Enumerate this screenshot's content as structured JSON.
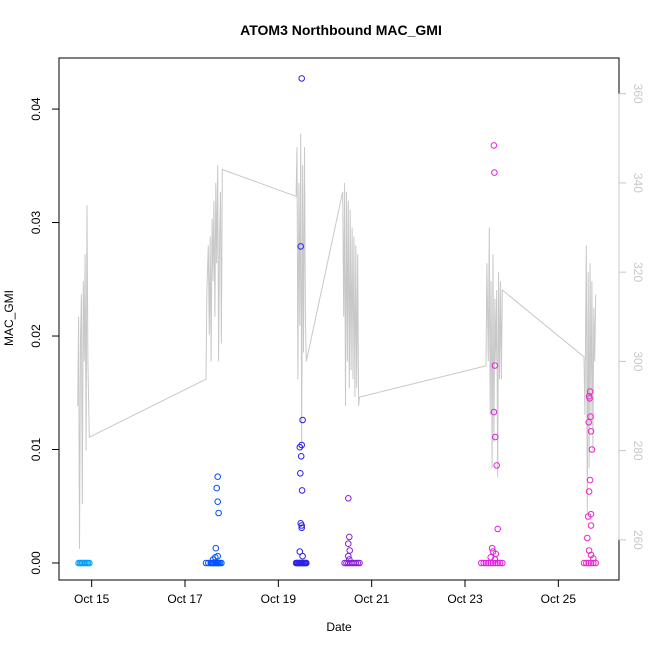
{
  "chart_data": {
    "type": "scatter",
    "title": "ATOM3 Northbound MAC_GMI",
    "xlabel": "Date",
    "ylabel": "MAC_GMI",
    "y2label": "",
    "x_ticks": [
      "Oct 15",
      "Oct 17",
      "Oct 19",
      "Oct 21",
      "Oct 23",
      "Oct 25"
    ],
    "x_tick_values": [
      15,
      17,
      19,
      21,
      23,
      25
    ],
    "xlim": [
      14.3,
      26.3
    ],
    "y_ticks": [
      "0.00",
      "0.01",
      "0.02",
      "0.03",
      "0.04"
    ],
    "y_tick_values": [
      0,
      0.01,
      0.02,
      0.03,
      0.04
    ],
    "ylim": [
      -0.0015,
      0.0445
    ],
    "y2_ticks": [
      "260",
      "280",
      "300",
      "320",
      "340",
      "360"
    ],
    "y2_tick_values": [
      260,
      280,
      300,
      320,
      340,
      360
    ],
    "y2lim": [
      251,
      368
    ],
    "grid": false,
    "legend": "none",
    "colors": {
      "line": "#c8c8c8",
      "right_axis": "#c8c8c8",
      "points_low": "#00a0ff",
      "points_mid": "#0040ff",
      "points_blue": "#2020e0",
      "points_violet": "#8020d0",
      "points_magenta": "#e020e0"
    },
    "series": [
      {
        "type": "scatter",
        "color": "#00a0ff",
        "x": [
          14.72,
          14.75,
          14.78,
          14.8,
          14.83,
          14.86,
          14.89,
          14.92,
          14.95
        ],
        "y": [
          0,
          0,
          0,
          0,
          0,
          0,
          0,
          0,
          0
        ]
      },
      {
        "type": "scatter",
        "color": "#0050ff",
        "x": [
          17.45,
          17.5,
          17.55,
          17.58,
          17.6,
          17.62,
          17.65,
          17.68,
          17.7,
          17.72,
          17.75,
          17.78,
          17.6,
          17.65,
          17.7,
          17.7,
          17.68,
          17.7,
          17.72,
          17.66
        ],
        "y": [
          0,
          0,
          0,
          0,
          0,
          0,
          0,
          0,
          0,
          0,
          0,
          0,
          0.0003,
          0.0005,
          0.0006,
          0.0076,
          0.0066,
          0.0054,
          0.0044,
          0.0013
        ]
      },
      {
        "type": "scatter",
        "color": "#2a20e8",
        "x": [
          19.38,
          19.4,
          19.42,
          19.44,
          19.46,
          19.48,
          19.5,
          19.52,
          19.54,
          19.56,
          19.58,
          19.6,
          19.5,
          19.48,
          19.52,
          19.5,
          19.46,
          19.49,
          19.47,
          19.51,
          19.48,
          19.5,
          19.5,
          19.46,
          19.52
        ],
        "y": [
          0,
          0,
          0,
          0,
          0,
          0,
          0,
          0,
          0,
          0,
          0,
          0,
          0.0427,
          0.0279,
          0.0126,
          0.0104,
          0.0102,
          0.0094,
          0.0079,
          0.0064,
          0.0035,
          0.0033,
          0.0031,
          0.001,
          0.0006
        ]
      },
      {
        "type": "scatter",
        "color": "#8a1ed8",
        "x": [
          20.42,
          20.46,
          20.5,
          20.54,
          20.58,
          20.62,
          20.66,
          20.7,
          20.74,
          20.5,
          20.52,
          20.5,
          20.53,
          20.5,
          20.52
        ],
        "y": [
          0,
          0,
          0,
          0,
          0,
          0,
          0,
          0,
          0,
          0.0057,
          0.0023,
          0.0017,
          0.0011,
          0.0006,
          0.0003
        ]
      },
      {
        "type": "scatter",
        "color": "#e020e0",
        "x": [
          23.35,
          23.4,
          23.45,
          23.5,
          23.55,
          23.6,
          23.65,
          23.7,
          23.75,
          23.8,
          23.62,
          23.63,
          23.64,
          23.62,
          23.65,
          23.68,
          23.7,
          23.58,
          23.6,
          23.66,
          23.55,
          23.64
        ],
        "y": [
          0,
          0,
          0,
          0,
          0,
          0,
          0,
          0,
          0,
          0,
          0.0368,
          0.0344,
          0.0174,
          0.0133,
          0.0111,
          0.0086,
          0.003,
          0.0013,
          0.001,
          0.0008,
          0.0005,
          0.0003
        ]
      },
      {
        "type": "scatter",
        "color": "#e828c8",
        "x": [
          25.55,
          25.6,
          25.65,
          25.7,
          25.75,
          25.8,
          25.68,
          25.66,
          25.67,
          25.69,
          25.65,
          25.7,
          25.72,
          25.68,
          25.66,
          25.7,
          25.64,
          25.7,
          25.62,
          25.66,
          25.7,
          25.75
        ],
        "y": [
          0,
          0,
          0,
          0,
          0,
          0,
          0.0151,
          0.0147,
          0.0145,
          0.0129,
          0.0124,
          0.0116,
          0.01,
          0.0073,
          0.0063,
          0.0043,
          0.0041,
          0.0033,
          0.0022,
          0.0011,
          0.0007,
          0.0004
        ]
      },
      {
        "type": "line",
        "axis": "right",
        "color": "#c8c8c8",
        "x": [
          14.7,
          14.72,
          14.74,
          14.76,
          14.78,
          14.8,
          14.82,
          14.84,
          14.86,
          14.88,
          14.9,
          14.92,
          14.95,
          17.45,
          17.47,
          17.5,
          17.52,
          17.54,
          17.56,
          17.58,
          17.6,
          17.62,
          17.64,
          17.66,
          17.68,
          17.7,
          17.72,
          17.74,
          17.76,
          17.78,
          17.8,
          19.38,
          19.4,
          19.42,
          19.44,
          19.46,
          19.48,
          19.5,
          19.52,
          19.54,
          19.56,
          19.58,
          19.6,
          20.38,
          20.4,
          20.42,
          20.44,
          20.46,
          20.48,
          20.5,
          20.52,
          20.54,
          20.56,
          20.58,
          20.6,
          20.62,
          20.64,
          20.66,
          20.68,
          20.7,
          20.72,
          20.74,
          23.45,
          23.47,
          23.5,
          23.52,
          23.54,
          23.56,
          23.58,
          23.6,
          23.62,
          23.64,
          23.66,
          23.68,
          23.7,
          23.72,
          23.74,
          23.76,
          23.78,
          23.8,
          25.55,
          25.57,
          25.6,
          25.62,
          25.64,
          25.66,
          25.68,
          25.7,
          25.72,
          25.74,
          25.76,
          25.78,
          25.8
        ],
        "y": [
          290,
          310,
          258,
          305,
          315,
          268,
          318,
          300,
          324,
          280,
          335,
          300,
          283,
          296,
          316,
          326,
          306,
          328,
          300,
          332,
          318,
          336,
          310,
          340,
          322,
          344,
          300,
          326,
          338,
          304,
          343,
          337,
          348,
          296,
          340,
          308,
          351,
          280,
          344,
          302,
          348,
          310,
          300,
          338,
          310,
          340,
          290,
          338,
          300,
          336,
          294,
          334,
          298,
          330,
          296,
          328,
          292,
          326,
          294,
          324,
          290,
          292,
          299,
          322,
          300,
          330,
          288,
          318,
          276,
          324,
          282,
          314,
          300,
          316,
          274,
          320,
          296,
          318,
          296,
          316,
          301,
          288,
          326,
          266,
          320,
          276,
          322,
          286,
          318,
          280,
          312,
          300,
          315
        ]
      }
    ]
  }
}
